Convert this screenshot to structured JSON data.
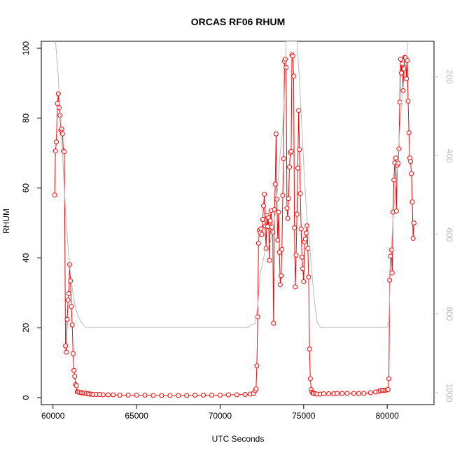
{
  "chart_data": {
    "type": "line",
    "title": "ORCAS RF06 RHUM",
    "xlabel": "UTC Seconds",
    "ylabel": "RHUM",
    "xlim": [
      59300,
      82800
    ],
    "ylim": [
      -2,
      102
    ],
    "x_ticks": [
      60000,
      65000,
      70000,
      75000,
      80000
    ],
    "y_ticks": [
      0,
      20,
      40,
      60,
      80,
      100
    ],
    "right_axis": {
      "ticks": [
        200,
        400,
        600,
        800,
        1000
      ],
      "range_top": 110,
      "range_bottom": 1030,
      "color": "#bbbbbb"
    },
    "series": [
      {
        "color": "#ff0000",
        "style": "line-with-open-circles",
        "points": [
          [
            60100,
            58
          ],
          [
            60150,
            70.6
          ],
          [
            60200,
            73.2
          ],
          [
            60270,
            84.2
          ],
          [
            60320,
            87
          ],
          [
            60370,
            83
          ],
          [
            60420,
            80.8
          ],
          [
            60470,
            76.5
          ],
          [
            60520,
            76.9
          ],
          [
            60570,
            75.5
          ],
          [
            60620,
            70.6
          ],
          [
            60680,
            70.4
          ],
          [
            60750,
            14.8
          ],
          [
            60800,
            13
          ],
          [
            60850,
            22.4
          ],
          [
            60900,
            27.9
          ],
          [
            60950,
            29.8
          ],
          [
            61000,
            38.1
          ],
          [
            61050,
            33.4
          ],
          [
            61100,
            26.1
          ],
          [
            61150,
            20.8
          ],
          [
            61200,
            12.6
          ],
          [
            61250,
            7.8
          ],
          [
            61300,
            6.1
          ],
          [
            61350,
            3.7
          ],
          [
            61400,
            3.4
          ],
          [
            61450,
            1.7
          ],
          [
            61500,
            1.6
          ],
          [
            61600,
            1.5
          ],
          [
            61700,
            1.4
          ],
          [
            61800,
            1.3
          ],
          [
            61900,
            1.3
          ],
          [
            62000,
            1.2
          ],
          [
            62100,
            1.1
          ],
          [
            62200,
            1.0
          ],
          [
            62300,
            1.0
          ],
          [
            62400,
            0.9
          ],
          [
            62600,
            0.9
          ],
          [
            62800,
            0.9
          ],
          [
            63000,
            0.8
          ],
          [
            63300,
            0.8
          ],
          [
            63600,
            0.8
          ],
          [
            64000,
            0.7
          ],
          [
            64500,
            0.7
          ],
          [
            65000,
            0.7
          ],
          [
            65500,
            0.7
          ],
          [
            66000,
            0.6
          ],
          [
            66500,
            0.6
          ],
          [
            67000,
            0.6
          ],
          [
            67500,
            0.6
          ],
          [
            68000,
            0.6
          ],
          [
            68500,
            0.7
          ],
          [
            69000,
            0.7
          ],
          [
            69500,
            0.7
          ],
          [
            70000,
            0.7
          ],
          [
            70500,
            0.8
          ],
          [
            71000,
            0.8
          ],
          [
            71500,
            0.9
          ],
          [
            71800,
            1.0
          ],
          [
            72000,
            1.2
          ],
          [
            72100,
            2.0
          ],
          [
            72150,
            2.5
          ],
          [
            72200,
            9.1
          ],
          [
            72250,
            23.1
          ],
          [
            72300,
            44.2
          ],
          [
            72350,
            47.9
          ],
          [
            72400,
            47.2
          ],
          [
            72450,
            48.3
          ],
          [
            72500,
            46.7
          ],
          [
            72550,
            51.0
          ],
          [
            72600,
            54.9
          ],
          [
            72650,
            58.2
          ],
          [
            72700,
            49.1
          ],
          [
            72750,
            42.7
          ],
          [
            72800,
            52.2
          ],
          [
            72850,
            49.0
          ],
          [
            72900,
            51.5
          ],
          [
            72950,
            39.3
          ],
          [
            73000,
            50.6
          ],
          [
            73050,
            53.5
          ],
          [
            73100,
            48.8
          ],
          [
            73150,
            47.4
          ],
          [
            73200,
            21.3
          ],
          [
            73250,
            53.8
          ],
          [
            73300,
            61.1
          ],
          [
            73350,
            75.5
          ],
          [
            73400,
            56.8
          ],
          [
            73450,
            45.1
          ],
          [
            73500,
            53.1
          ],
          [
            73550,
            41.6
          ],
          [
            73600,
            32.3
          ],
          [
            73650,
            34.9
          ],
          [
            73700,
            42.4
          ],
          [
            73750,
            57.9
          ],
          [
            73800,
            68.4
          ],
          [
            73850,
            96.3
          ],
          [
            73900,
            96.9
          ],
          [
            73950,
            94.5
          ],
          [
            74000,
            54.2
          ],
          [
            74050,
            51.3
          ],
          [
            74100,
            57.0
          ],
          [
            74150,
            66.0
          ],
          [
            74200,
            70.1
          ],
          [
            74250,
            70.5
          ],
          [
            74300,
            98.1
          ],
          [
            74350,
            97.8
          ],
          [
            74400,
            92.0
          ],
          [
            74450,
            48.6
          ],
          [
            74500,
            31.7
          ],
          [
            74550,
            40.8
          ],
          [
            74600,
            52.5
          ],
          [
            74650,
            65.7
          ],
          [
            74700,
            82.2
          ],
          [
            74750,
            71.0
          ],
          [
            74800,
            58.4
          ],
          [
            74850,
            48.3
          ],
          [
            74900,
            40.2
          ],
          [
            74950,
            36.9
          ],
          [
            75000,
            33.2
          ],
          [
            75050,
            44.6
          ],
          [
            75100,
            45.4
          ],
          [
            75150,
            47.1
          ],
          [
            75200,
            49.2
          ],
          [
            75250,
            42.7
          ],
          [
            75300,
            34.5
          ],
          [
            75350,
            13.9
          ],
          [
            75400,
            5.4
          ],
          [
            75450,
            2.3
          ],
          [
            75500,
            1.6
          ],
          [
            75550,
            1.3
          ],
          [
            75600,
            1.2
          ],
          [
            75700,
            1.1
          ],
          [
            75800,
            1.0
          ],
          [
            76000,
            1.0
          ],
          [
            76200,
            1.1
          ],
          [
            76500,
            1.1
          ],
          [
            76800,
            1.1
          ],
          [
            77000,
            1.2
          ],
          [
            77300,
            1.2
          ],
          [
            77600,
            1.2
          ],
          [
            78000,
            1.2
          ],
          [
            78300,
            1.2
          ],
          [
            78600,
            1.2
          ],
          [
            79000,
            1.4
          ],
          [
            79300,
            1.6
          ],
          [
            79500,
            1.8
          ],
          [
            79600,
            2.0
          ],
          [
            79700,
            2.1
          ],
          [
            79800,
            2.1
          ],
          [
            79900,
            2.1
          ],
          [
            80000,
            2.2
          ],
          [
            80050,
            2.3
          ],
          [
            80100,
            5.4
          ],
          [
            80150,
            33.6
          ],
          [
            80200,
            40.5
          ],
          [
            80250,
            42.3
          ],
          [
            80300,
            35.7
          ],
          [
            80350,
            53.1
          ],
          [
            80400,
            62.3
          ],
          [
            80450,
            67.2
          ],
          [
            80500,
            68.6
          ],
          [
            80550,
            53.4
          ],
          [
            80600,
            66.5
          ],
          [
            80650,
            67.1
          ],
          [
            80700,
            71.2
          ],
          [
            80750,
            84.6
          ],
          [
            80800,
            96.9
          ],
          [
            80850,
            92.9
          ],
          [
            80900,
            95.6
          ],
          [
            80950,
            87.9
          ],
          [
            81000,
            94.1
          ],
          [
            81050,
            97.4
          ],
          [
            81100,
            97.3
          ],
          [
            81150,
            91.3
          ],
          [
            81200,
            96.5
          ],
          [
            81250,
            84.9
          ],
          [
            81300,
            75.8
          ],
          [
            81350,
            68.6
          ],
          [
            81400,
            67.6
          ],
          [
            81450,
            64.1
          ],
          [
            81500,
            56.0
          ],
          [
            81550,
            45.6
          ],
          [
            81600,
            50.0
          ]
        ]
      },
      {
        "color": "#bbbbbb",
        "style": "line",
        "axis": "right",
        "points": [
          [
            60150,
            110
          ],
          [
            60300,
            190
          ],
          [
            60450,
            300
          ],
          [
            60600,
            420
          ],
          [
            60750,
            540
          ],
          [
            60900,
            630
          ],
          [
            61050,
            700
          ],
          [
            61200,
            750
          ],
          [
            61350,
            785
          ],
          [
            61500,
            805
          ],
          [
            61700,
            822
          ],
          [
            61950,
            834
          ],
          [
            62100,
            834
          ],
          [
            65000,
            834
          ],
          [
            70000,
            834
          ],
          [
            71700,
            834
          ],
          [
            71850,
            828
          ],
          [
            72100,
            825
          ],
          [
            72250,
            780
          ],
          [
            72400,
            700
          ],
          [
            72700,
            640
          ],
          [
            73000,
            620
          ],
          [
            73150,
            590
          ],
          [
            73300,
            545
          ],
          [
            73450,
            480
          ],
          [
            73600,
            390
          ],
          [
            73750,
            330
          ],
          [
            73850,
            250
          ],
          [
            73950,
            110
          ],
          [
            74600,
            110
          ],
          [
            74750,
            210
          ],
          [
            74900,
            330
          ],
          [
            75050,
            460
          ],
          [
            75200,
            560
          ],
          [
            75350,
            620
          ],
          [
            75500,
            700
          ],
          [
            75650,
            770
          ],
          [
            75800,
            820
          ],
          [
            76000,
            834
          ],
          [
            80000,
            834
          ],
          [
            80100,
            818
          ],
          [
            80200,
            680
          ],
          [
            80350,
            560
          ],
          [
            80500,
            480
          ],
          [
            80650,
            400
          ],
          [
            80800,
            300
          ],
          [
            80950,
            230
          ],
          [
            81100,
            170
          ],
          [
            81250,
            110
          ]
        ]
      }
    ]
  }
}
